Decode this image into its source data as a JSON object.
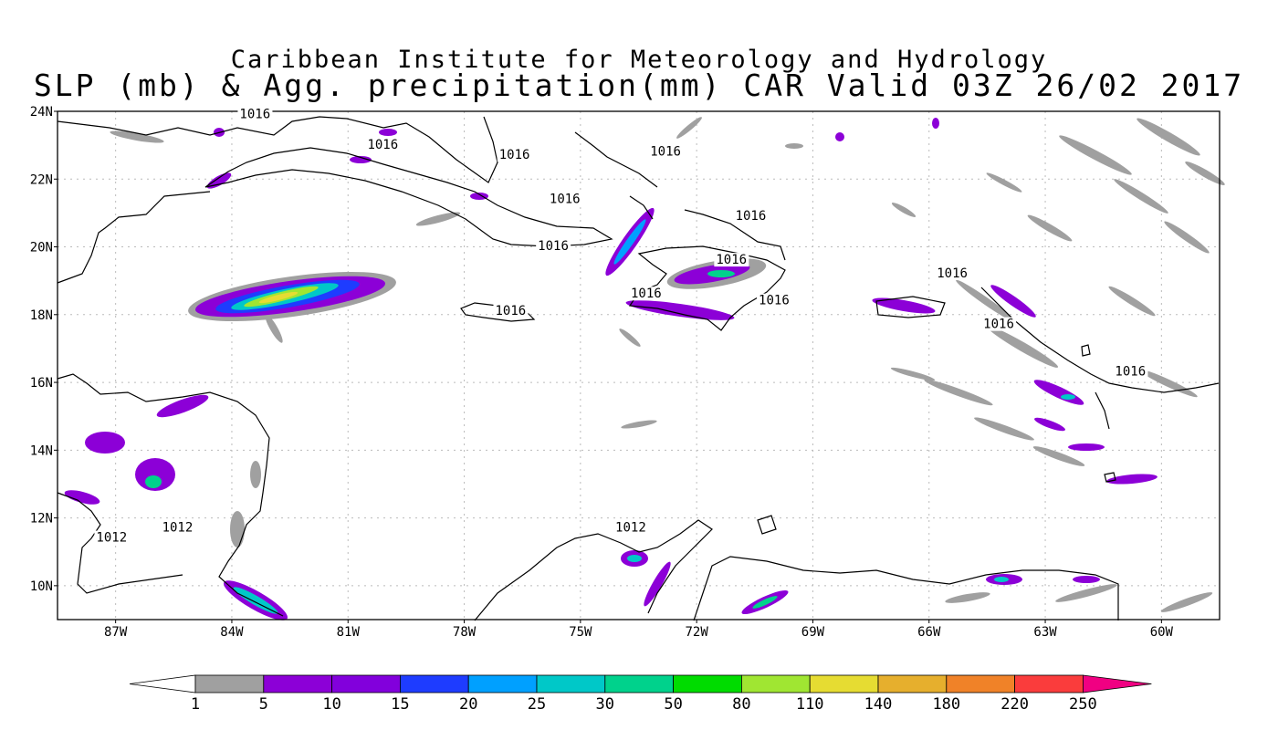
{
  "title": {
    "line1": "Caribbean Institute for Meteorology and Hydrology",
    "line2": "SLP (mb) & Agg. precipitation(mm) CAR Valid 03Z 26/02 2017"
  },
  "map": {
    "lon_range": [
      -88.5,
      -58.5
    ],
    "lat_range": [
      9,
      24
    ],
    "lat_labels": [
      {
        "lat": 24,
        "label": "24N"
      },
      {
        "lat": 22,
        "label": "22N"
      },
      {
        "lat": 20,
        "label": "20N"
      },
      {
        "lat": 18,
        "label": "18N"
      },
      {
        "lat": 16,
        "label": "16N"
      },
      {
        "lat": 14,
        "label": "14N"
      },
      {
        "lat": 12,
        "label": "12N"
      },
      {
        "lat": 10,
        "label": "10N"
      }
    ],
    "lon_labels": [
      {
        "lon": -87,
        "label": "87W"
      },
      {
        "lon": -84,
        "label": "84W"
      },
      {
        "lon": -81,
        "label": "81W"
      },
      {
        "lon": -78,
        "label": "78W"
      },
      {
        "lon": -75,
        "label": "75W"
      },
      {
        "lon": -72,
        "label": "72W"
      },
      {
        "lon": -69,
        "label": "69W"
      },
      {
        "lon": -66,
        "label": "66W"
      },
      {
        "lon": -63,
        "label": "63W"
      },
      {
        "lon": -60,
        "label": "60W"
      }
    ],
    "isobar_labels": [
      {
        "lon": -83.8,
        "lat": 23.8,
        "text": "1016"
      },
      {
        "lon": -80.5,
        "lat": 22.9,
        "text": "1016"
      },
      {
        "lon": -77.1,
        "lat": 22.6,
        "text": "1016"
      },
      {
        "lon": -73.2,
        "lat": 22.7,
        "text": "1016"
      },
      {
        "lon": -75.8,
        "lat": 21.3,
        "text": "1016"
      },
      {
        "lon": -71.0,
        "lat": 20.8,
        "text": "1016"
      },
      {
        "lon": -76.1,
        "lat": 19.9,
        "text": "1016"
      },
      {
        "lon": -71.5,
        "lat": 19.5,
        "text": "1016"
      },
      {
        "lon": -73.7,
        "lat": 18.5,
        "text": "1016"
      },
      {
        "lon": -70.4,
        "lat": 18.3,
        "text": "1016"
      },
      {
        "lon": -77.2,
        "lat": 18.0,
        "text": "1016"
      },
      {
        "lon": -65.8,
        "lat": 19.1,
        "text": "1016"
      },
      {
        "lon": -64.6,
        "lat": 17.6,
        "text": "1016"
      },
      {
        "lon": -61.2,
        "lat": 16.2,
        "text": "1016"
      },
      {
        "lon": -74.1,
        "lat": 11.6,
        "text": "1012"
      },
      {
        "lon": -85.8,
        "lat": 11.6,
        "text": "1012"
      },
      {
        "lon": -87.5,
        "lat": 11.3,
        "text": "1012"
      }
    ],
    "precip_colors": {
      "c1": "#a0a0a0",
      "c5": "#8c00d7",
      "c10": "#8200dc",
      "c15": "#1e3cff",
      "c20": "#00a0ff",
      "c25": "#00c8c8",
      "c30": "#00d28c",
      "c50": "#00dc00",
      "c80": "#a0e632",
      "c110": "#e6dc32",
      "c140": "#e6af2d",
      "c180": "#f08228",
      "c220": "#fa3c3c",
      "c250": "#f00082"
    }
  },
  "colorbar": {
    "labels": [
      "1",
      "5",
      "10",
      "15",
      "20",
      "25",
      "30",
      "50",
      "80",
      "110",
      "140",
      "180",
      "220",
      "250"
    ],
    "colors": [
      "#a0a0a0",
      "#8c00d7",
      "#8200dc",
      "#1e3cff",
      "#00a0ff",
      "#00c8c8",
      "#00d28c",
      "#00dc00",
      "#a0e632",
      "#e6dc32",
      "#e6af2d",
      "#f08228",
      "#fa3c3c"
    ],
    "under_color": "#ffffff",
    "over_color": "#f00082"
  }
}
